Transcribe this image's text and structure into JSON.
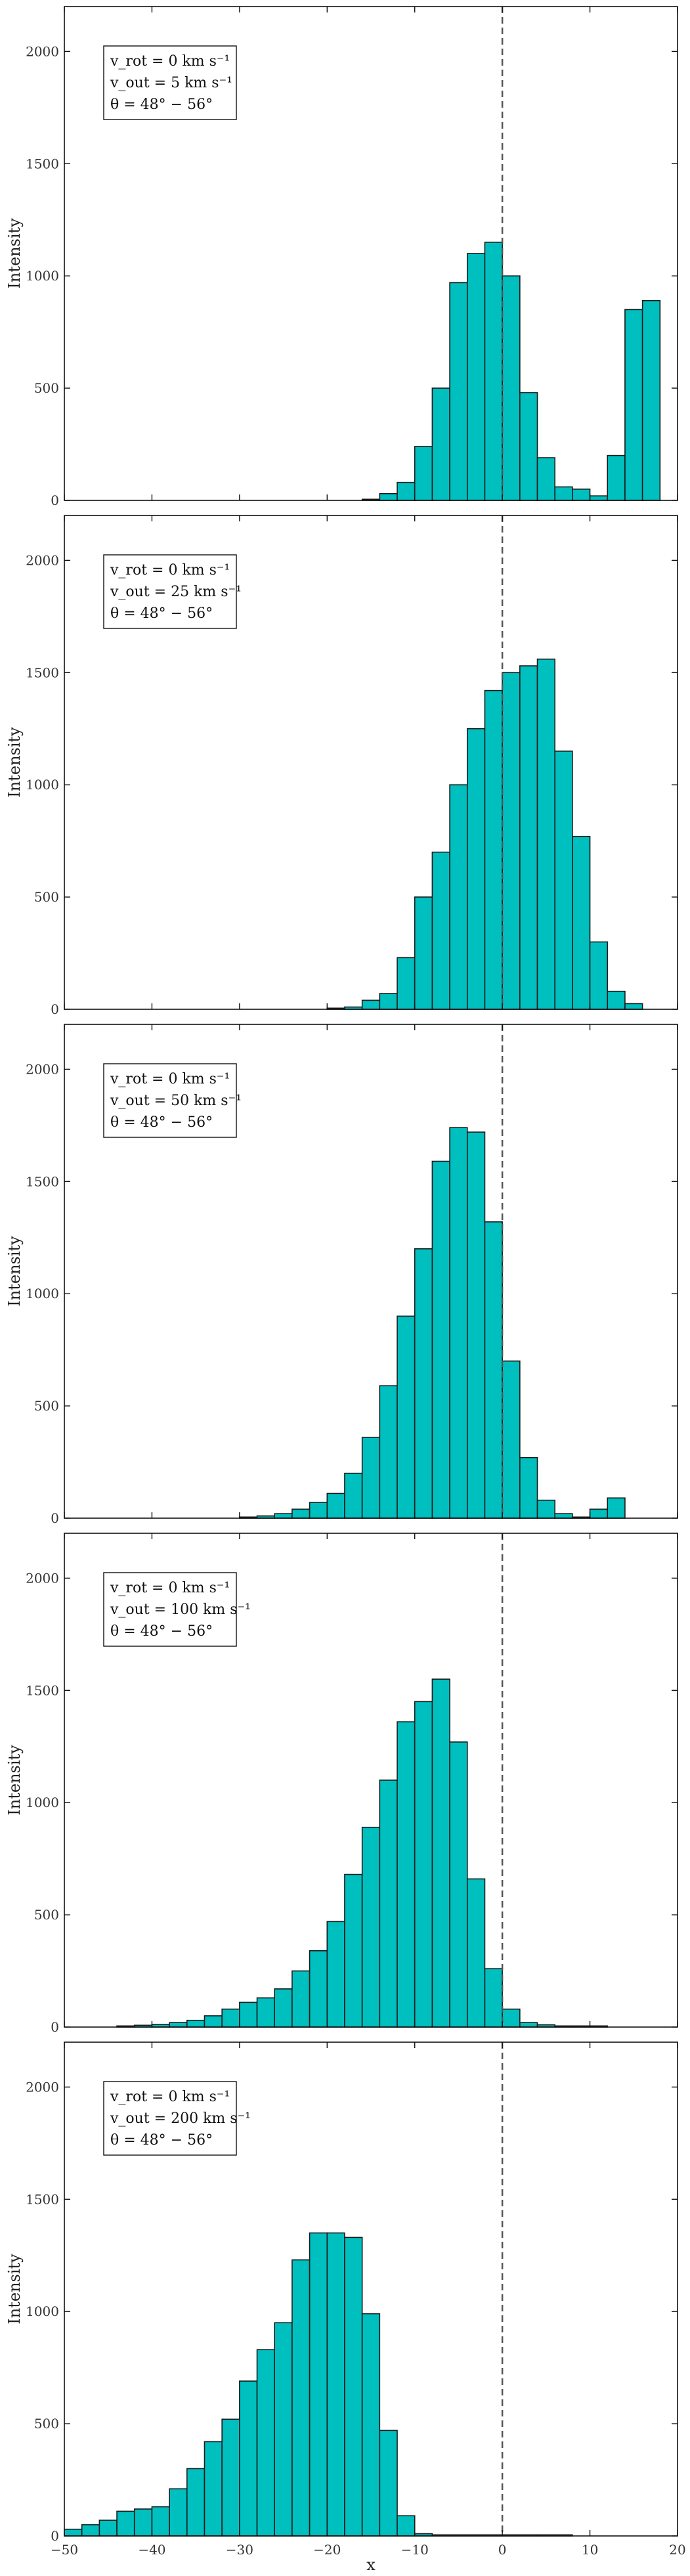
{
  "figure": {
    "xlabel": "x",
    "xlim": [
      -50,
      20
    ],
    "xticks": [
      -50,
      -40,
      -30,
      -20,
      -10,
      0,
      10,
      20
    ],
    "vline_x": 0,
    "fill_color": "#00BFBF",
    "edge_color": "#1a1a1a"
  },
  "chart_data": [
    {
      "type": "bar",
      "histogram": true,
      "ylabel": "Intensity",
      "ylim": [
        0,
        2200
      ],
      "yticks": [
        0,
        500,
        1000,
        1500,
        2000
      ],
      "legend": [
        "v_rot = 0 km s⁻¹",
        "v_out = 5 km s⁻¹",
        "θ = 48° − 56°"
      ],
      "bin_width": 2,
      "bin_starts": [
        -16,
        -14,
        -12,
        -10,
        -8,
        -6,
        -4,
        -2,
        0,
        2,
        4,
        6,
        8,
        10,
        12,
        14,
        16
      ],
      "values": [
        5,
        30,
        80,
        240,
        500,
        970,
        1100,
        1150,
        1000,
        480,
        190,
        60,
        50,
        20,
        200,
        850,
        890
      ]
    },
    {
      "type": "bar",
      "histogram": true,
      "ylabel": "Intensity",
      "ylim": [
        0,
        2200
      ],
      "yticks": [
        0,
        500,
        1000,
        1500,
        2000
      ],
      "legend": [
        "v_rot = 0 km s⁻¹",
        "v_out = 25 km s⁻¹",
        "θ = 48° − 56°"
      ],
      "bin_width": 2,
      "bin_starts": [
        -20,
        -18,
        -16,
        -14,
        -12,
        -10,
        -8,
        -6,
        -4,
        -2,
        0,
        2,
        4,
        6,
        8,
        10,
        12,
        14
      ],
      "values": [
        5,
        10,
        40,
        70,
        230,
        500,
        700,
        1000,
        1250,
        1420,
        1500,
        1530,
        1560,
        1150,
        770,
        300,
        80,
        25
      ]
    },
    {
      "type": "bar",
      "histogram": true,
      "ylabel": "Intensity",
      "ylim": [
        0,
        2200
      ],
      "yticks": [
        0,
        500,
        1000,
        1500,
        2000
      ],
      "legend": [
        "v_rot = 0 km s⁻¹",
        "v_out = 50 km s⁻¹",
        "θ = 48° − 56°"
      ],
      "bin_width": 2,
      "bin_starts": [
        -30,
        -28,
        -26,
        -24,
        -22,
        -20,
        -18,
        -16,
        -14,
        -12,
        -10,
        -8,
        -6,
        -4,
        -2,
        0,
        2,
        4,
        6,
        8,
        10,
        12
      ],
      "values": [
        5,
        10,
        20,
        40,
        70,
        110,
        200,
        360,
        590,
        900,
        1200,
        1590,
        1740,
        1720,
        1320,
        700,
        270,
        80,
        20,
        5,
        40,
        90
      ]
    },
    {
      "type": "bar",
      "histogram": true,
      "ylabel": "Intensity",
      "ylim": [
        0,
        2200
      ],
      "yticks": [
        0,
        500,
        1000,
        1500,
        2000
      ],
      "legend": [
        "v_rot = 0 km s⁻¹",
        "v_out = 100 km s⁻¹",
        "θ = 48° − 56°"
      ],
      "bin_width": 2,
      "bin_starts": [
        -44,
        -42,
        -40,
        -38,
        -36,
        -34,
        -32,
        -30,
        -28,
        -26,
        -24,
        -22,
        -20,
        -18,
        -16,
        -14,
        -12,
        -10,
        -8,
        -6,
        -4,
        -2,
        0,
        2,
        4,
        6,
        8,
        10
      ],
      "values": [
        5,
        8,
        12,
        20,
        30,
        50,
        80,
        110,
        130,
        170,
        250,
        340,
        470,
        680,
        890,
        1100,
        1360,
        1450,
        1550,
        1270,
        660,
        260,
        80,
        20,
        10,
        5,
        5,
        5
      ]
    },
    {
      "type": "bar",
      "histogram": true,
      "ylabel": "Intensity",
      "ylim": [
        0,
        2200
      ],
      "yticks": [
        0,
        500,
        1000,
        1500,
        2000
      ],
      "legend": [
        "v_rot = 0 km s⁻¹",
        "v_out = 200 km s⁻¹",
        "θ = 48° − 56°"
      ],
      "bin_width": 2,
      "bin_starts": [
        -50,
        -48,
        -46,
        -44,
        -42,
        -40,
        -38,
        -36,
        -34,
        -32,
        -30,
        -28,
        -26,
        -24,
        -22,
        -20,
        -18,
        -16,
        -14,
        -12,
        -10,
        -8,
        -6,
        -4,
        -2,
        0,
        2,
        4,
        6
      ],
      "values": [
        30,
        50,
        70,
        110,
        120,
        130,
        210,
        300,
        420,
        520,
        690,
        830,
        950,
        1230,
        1350,
        1350,
        1330,
        990,
        470,
        90,
        10,
        5,
        5,
        5,
        5,
        5,
        5,
        5,
        5
      ]
    }
  ]
}
